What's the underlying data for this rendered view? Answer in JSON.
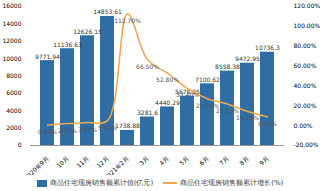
{
  "chart_data": {
    "type": "bar",
    "categories": [
      "2020年9月",
      "10月",
      "11月",
      "12月",
      "2021年2月",
      "3月",
      "4月",
      "5月",
      "6月",
      "7月",
      "8月",
      "9月"
    ],
    "series": [
      {
        "name": "商品住宅现房销售额累计值(亿元)",
        "type": "bar",
        "color": "#2f6ea5",
        "values": [
          9771.94,
          11136.63,
          12626.15,
          14853.61,
          1738.88,
          3281.6,
          4440.29,
          5678.05,
          7100.62,
          8558.38,
          9472.95,
          10736.3
        ]
      },
      {
        "name": "商品住宅现房销售额累计增长(%)",
        "type": "line",
        "axis": "y2",
        "color": "#f5a54a",
        "values": [
          0.36,
          2.07,
          3.07,
          5.09,
          112.7,
          66.5,
          52.8,
          37.4,
          27.09,
          21.8,
          14.3,
          9.0
        ],
        "value_labels": [
          "0.36%",
          "2.07%",
          "3.07%",
          "5.09%",
          "112.70%",
          "66.50%",
          "52.80%",
          "37.40%",
          "27.09%",
          "21.80%",
          "14.30%",
          "9.00%"
        ]
      }
    ],
    "ylim": [
      0,
      16000
    ],
    "yticks": [
      0,
      2000,
      4000,
      6000,
      8000,
      10000,
      12000,
      14000,
      16000
    ],
    "y2lim": [
      -20,
      120
    ],
    "y2ticks": [
      {
        "value": -20,
        "label": "-20.00%"
      },
      {
        "value": 0,
        "label": "0.00%"
      },
      {
        "value": 20,
        "label": "20.00%"
      },
      {
        "value": 40,
        "label": "40.00%"
      },
      {
        "value": 60,
        "label": "60.00%"
      },
      {
        "value": 80,
        "label": "80.00%"
      },
      {
        "value": 100,
        "label": "100.00%"
      },
      {
        "value": 120,
        "label": "120.00%"
      }
    ],
    "grid": false,
    "data_labels": true,
    "legend": "bottom"
  }
}
